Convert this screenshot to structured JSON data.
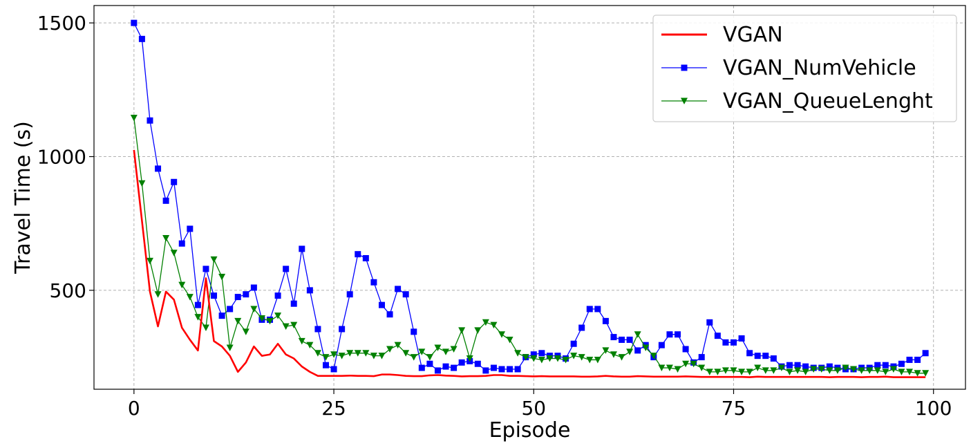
{
  "chart_data": {
    "type": "line",
    "title": "",
    "xlabel": "Episode",
    "ylabel": "Travel Time (s)",
    "xlim": [
      -5,
      104
    ],
    "ylim": [
      130,
      1565
    ],
    "xticks": [
      0,
      25,
      50,
      75,
      100
    ],
    "yticks": [
      500,
      1000,
      1500
    ],
    "grid": true,
    "legend_position": "top-right",
    "series": [
      {
        "name": "VGAN",
        "color": "#ff0000",
        "marker": "none",
        "x": [
          0,
          1,
          2,
          3,
          4,
          5,
          6,
          7,
          8,
          9,
          10,
          11,
          12,
          13,
          14,
          15,
          16,
          17,
          18,
          19,
          20,
          21,
          22,
          23,
          24,
          25,
          26,
          27,
          28,
          29,
          30,
          31,
          32,
          33,
          34,
          35,
          36,
          37,
          38,
          39,
          40,
          41,
          42,
          43,
          44,
          45,
          46,
          47,
          48,
          49,
          50,
          51,
          52,
          53,
          54,
          55,
          56,
          57,
          58,
          59,
          60,
          61,
          62,
          63,
          64,
          65,
          66,
          67,
          68,
          69,
          70,
          71,
          72,
          73,
          74,
          75,
          76,
          77,
          78,
          79,
          80,
          81,
          82,
          83,
          84,
          85,
          86,
          87,
          88,
          89,
          90,
          91,
          92,
          93,
          94,
          95,
          96,
          97,
          98,
          99
        ],
        "values": [
          1025,
          760,
          495,
          365,
          495,
          465,
          360,
          315,
          275,
          545,
          310,
          290,
          255,
          195,
          230,
          290,
          255,
          260,
          300,
          260,
          245,
          215,
          195,
          180,
          180,
          180,
          180,
          181,
          180,
          180,
          179,
          185,
          185,
          183,
          180,
          179,
          179,
          182,
          183,
          181,
          180,
          178,
          179,
          179,
          180,
          183,
          183,
          180,
          180,
          179,
          178,
          179,
          178,
          178,
          178,
          178,
          177,
          177,
          178,
          180,
          178,
          177,
          177,
          179,
          178,
          177,
          177,
          177,
          177,
          178,
          177,
          176,
          176,
          176,
          176,
          176,
          176,
          175,
          177,
          176,
          176,
          176,
          176,
          176,
          176,
          176,
          176,
          175,
          176,
          176,
          176,
          175,
          176,
          176,
          177,
          175,
          175,
          175,
          175,
          175
        ]
      },
      {
        "name": "VGAN_NumVehicle",
        "color": "#0000ff",
        "marker": "square",
        "x": [
          0,
          1,
          2,
          3,
          4,
          5,
          6,
          7,
          8,
          9,
          10,
          11,
          12,
          13,
          14,
          15,
          16,
          17,
          18,
          19,
          20,
          21,
          22,
          23,
          24,
          25,
          26,
          27,
          28,
          29,
          30,
          31,
          32,
          33,
          34,
          35,
          36,
          37,
          38,
          39,
          40,
          41,
          42,
          43,
          44,
          45,
          46,
          47,
          48,
          49,
          50,
          51,
          52,
          53,
          54,
          55,
          56,
          57,
          58,
          59,
          60,
          61,
          62,
          63,
          64,
          65,
          66,
          67,
          68,
          69,
          70,
          71,
          72,
          73,
          74,
          75,
          76,
          77,
          78,
          79,
          80,
          81,
          82,
          83,
          84,
          85,
          86,
          87,
          88,
          89,
          90,
          91,
          92,
          93,
          94,
          95,
          96,
          97,
          98,
          99
        ],
        "values": [
          1500,
          1440,
          1135,
          955,
          835,
          905,
          675,
          730,
          445,
          580,
          480,
          405,
          430,
          475,
          485,
          510,
          390,
          390,
          480,
          580,
          450,
          655,
          500,
          355,
          220,
          205,
          355,
          485,
          635,
          620,
          530,
          445,
          410,
          505,
          485,
          345,
          210,
          225,
          200,
          215,
          210,
          230,
          235,
          225,
          200,
          210,
          205,
          205,
          205,
          250,
          260,
          265,
          255,
          255,
          245,
          300,
          360,
          430,
          430,
          385,
          325,
          315,
          315,
          275,
          295,
          250,
          295,
          335,
          335,
          280,
          230,
          250,
          380,
          330,
          305,
          305,
          320,
          265,
          255,
          255,
          245,
          215,
          220,
          220,
          215,
          210,
          210,
          215,
          210,
          205,
          205,
          210,
          210,
          220,
          220,
          215,
          225,
          240,
          240,
          265
        ]
      },
      {
        "name": "VGAN_QueueLenght",
        "color": "#008000",
        "marker": "triangle-down",
        "x": [
          0,
          1,
          2,
          3,
          4,
          5,
          6,
          7,
          8,
          9,
          10,
          11,
          12,
          13,
          14,
          15,
          16,
          17,
          18,
          19,
          20,
          21,
          22,
          23,
          24,
          25,
          26,
          27,
          28,
          29,
          30,
          31,
          32,
          33,
          34,
          35,
          36,
          37,
          38,
          39,
          40,
          41,
          42,
          43,
          44,
          45,
          46,
          47,
          48,
          49,
          50,
          51,
          52,
          53,
          54,
          55,
          56,
          57,
          58,
          59,
          60,
          61,
          62,
          63,
          64,
          65,
          66,
          67,
          68,
          69,
          70,
          71,
          72,
          73,
          74,
          75,
          76,
          77,
          78,
          79,
          80,
          81,
          82,
          83,
          84,
          85,
          86,
          87,
          88,
          89,
          90,
          91,
          92,
          93,
          94,
          95,
          96,
          97,
          98,
          99
        ],
        "values": [
          1145,
          900,
          610,
          485,
          695,
          640,
          520,
          475,
          400,
          360,
          615,
          550,
          285,
          385,
          345,
          430,
          395,
          385,
          405,
          365,
          370,
          310,
          295,
          265,
          250,
          260,
          255,
          265,
          265,
          265,
          255,
          255,
          280,
          295,
          265,
          250,
          270,
          250,
          285,
          270,
          280,
          350,
          245,
          350,
          380,
          370,
          335,
          315,
          265,
          250,
          245,
          240,
          245,
          245,
          240,
          255,
          250,
          240,
          240,
          275,
          260,
          250,
          270,
          335,
          285,
          255,
          210,
          210,
          205,
          225,
          225,
          210,
          195,
          195,
          200,
          200,
          195,
          195,
          210,
          200,
          200,
          210,
          195,
          200,
          195,
          205,
          205,
          200,
          200,
          210,
          205,
          200,
          200,
          200,
          195,
          205,
          195,
          195,
          190,
          190
        ]
      }
    ]
  }
}
